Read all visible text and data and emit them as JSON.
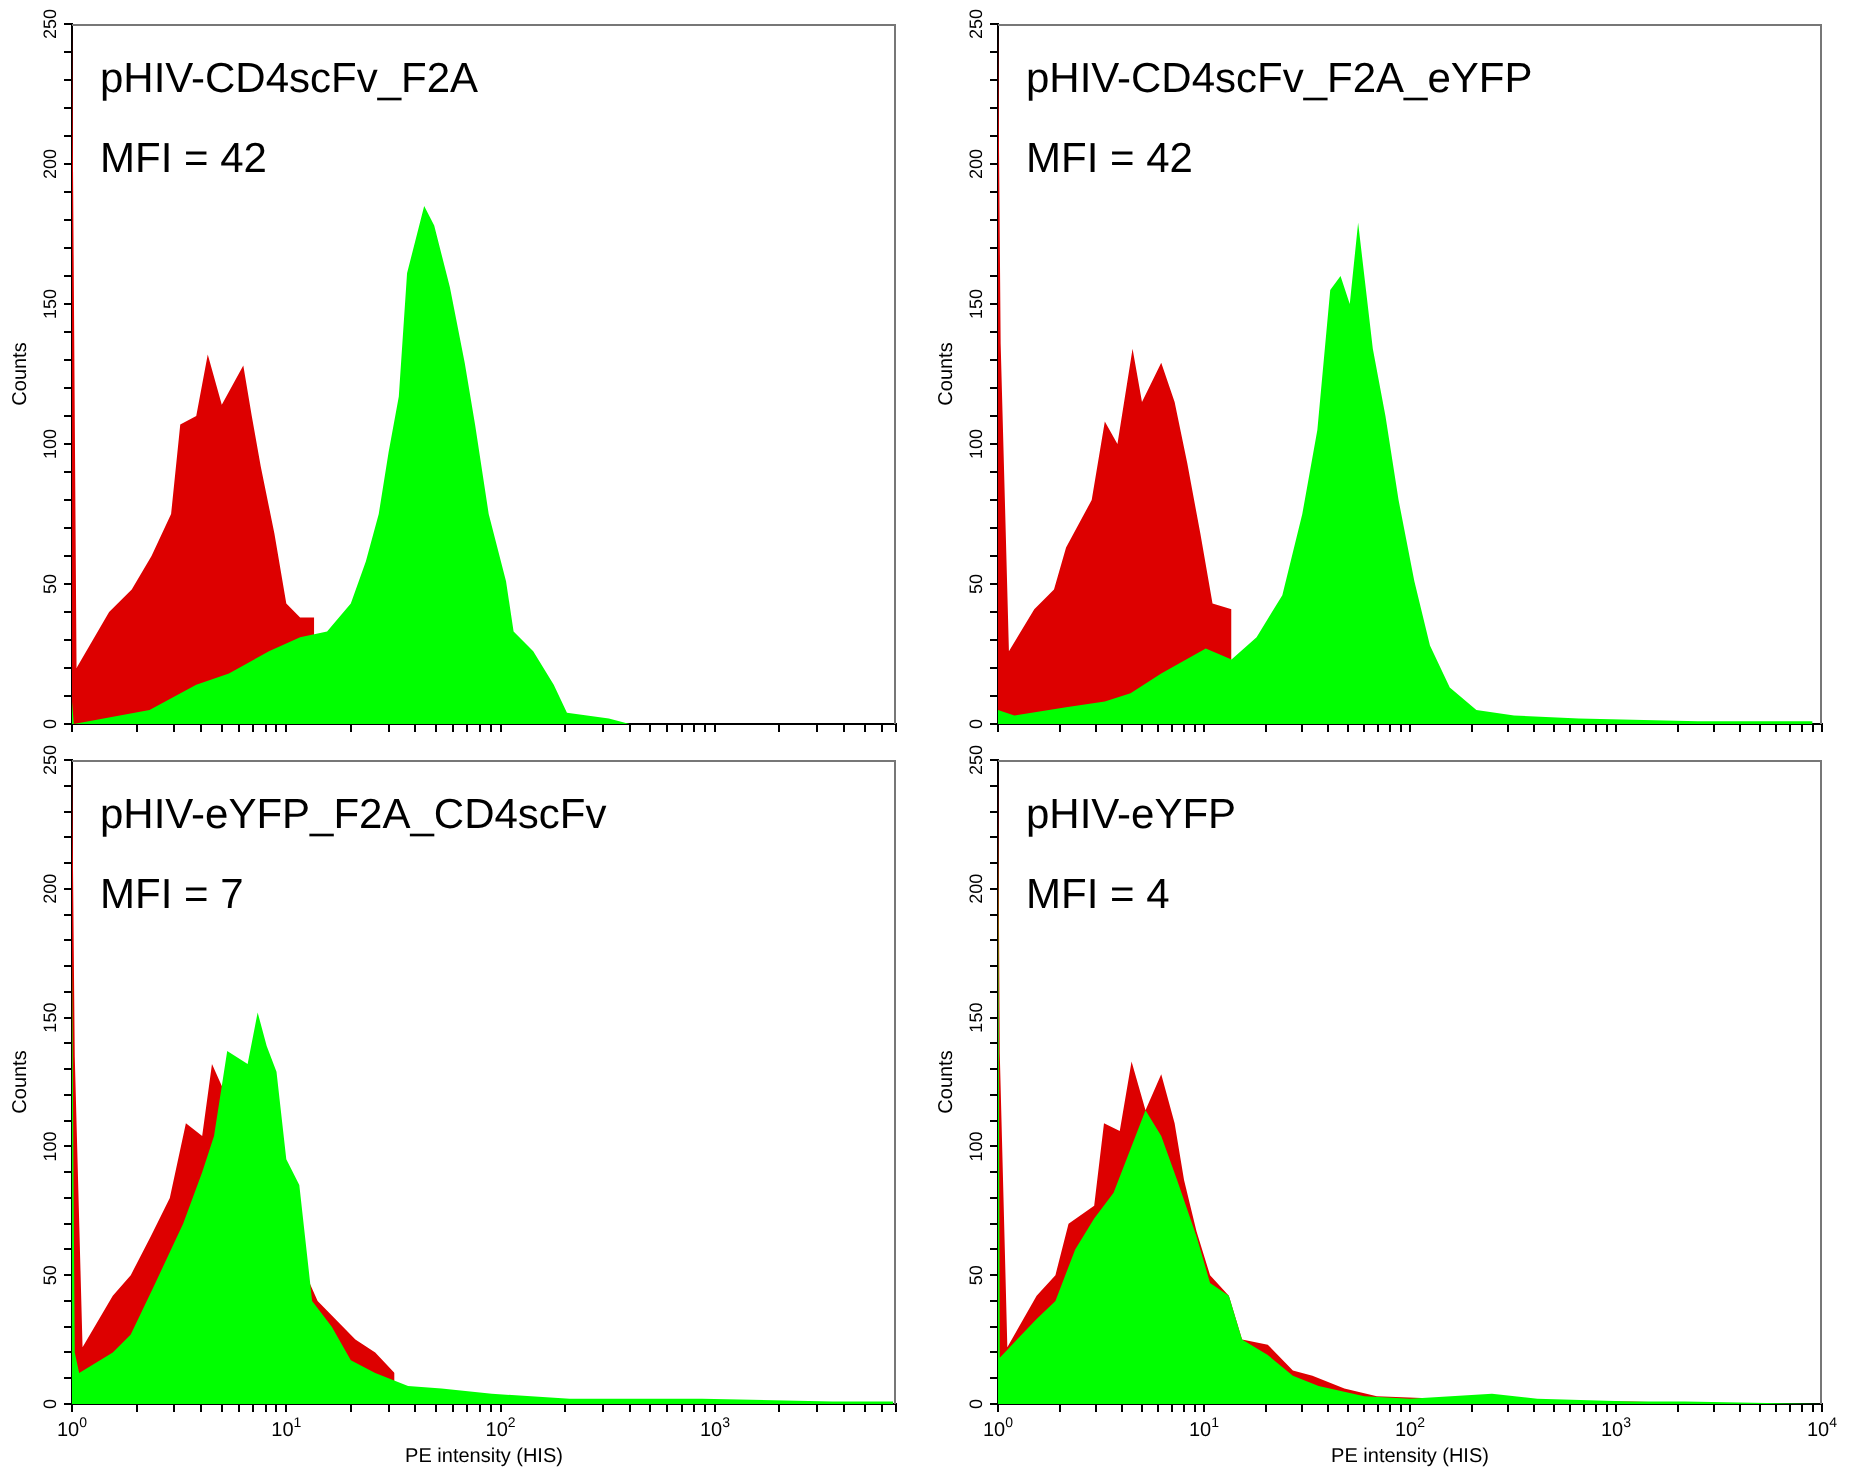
{
  "chart_data": [
    {
      "type": "area",
      "annotations": [
        "pHIV-CD4scFv_F2A",
        "MFI = 42"
      ],
      "ylabel": "Counts",
      "log": "x",
      "legend": false,
      "grid": false,
      "tick_labels": "y",
      "xlim": [
        1,
        7000
      ],
      "ylim": [
        0,
        250
      ],
      "xticks": [
        {
          "value": 1,
          "label": null
        },
        {
          "value": 2,
          "label": null
        },
        {
          "value": 3,
          "label": null
        },
        {
          "value": 4,
          "label": null
        },
        {
          "value": 5,
          "label": null
        },
        {
          "value": 6,
          "label": null
        },
        {
          "value": 7,
          "label": null
        },
        {
          "value": 8,
          "label": null
        },
        {
          "value": 9,
          "label": null
        },
        {
          "value": 10,
          "label": null
        },
        {
          "value": 20,
          "label": null
        },
        {
          "value": 30,
          "label": null
        },
        {
          "value": 40,
          "label": null
        },
        {
          "value": 50,
          "label": null
        },
        {
          "value": 60,
          "label": null
        },
        {
          "value": 70,
          "label": null
        },
        {
          "value": 80,
          "label": null
        },
        {
          "value": 90,
          "label": null
        },
        {
          "value": 100,
          "label": null
        },
        {
          "value": 200,
          "label": null
        },
        {
          "value": 300,
          "label": null
        },
        {
          "value": 400,
          "label": null
        },
        {
          "value": 500,
          "label": null
        },
        {
          "value": 600,
          "label": null
        },
        {
          "value": 700,
          "label": null
        },
        {
          "value": 800,
          "label": null
        },
        {
          "value": 900,
          "label": null
        },
        {
          "value": 1000,
          "label": null
        },
        {
          "value": 2000,
          "label": null
        },
        {
          "value": 3000,
          "label": null
        },
        {
          "value": 4000,
          "label": null
        },
        {
          "value": 5000,
          "label": null
        },
        {
          "value": 6000,
          "label": null
        },
        {
          "value": 7000,
          "label": null
        }
      ],
      "yticks": [
        0,
        {
          "value": 10,
          "label": null
        },
        {
          "value": 20,
          "label": null
        },
        {
          "value": 30,
          "label": null
        },
        {
          "value": 40,
          "label": null
        },
        50,
        {
          "value": 60,
          "label": null
        },
        {
          "value": 70,
          "label": null
        },
        {
          "value": 80,
          "label": null
        },
        {
          "value": 90,
          "label": null
        },
        100,
        {
          "value": 110,
          "label": null
        },
        {
          "value": 120,
          "label": null
        },
        {
          "value": 130,
          "label": null
        },
        {
          "value": 140,
          "label": null
        },
        150,
        {
          "value": 160,
          "label": null
        },
        {
          "value": 170,
          "label": null
        },
        {
          "value": 180,
          "label": null
        },
        {
          "value": 190,
          "label": null
        },
        200,
        {
          "value": 210,
          "label": null
        },
        {
          "value": 220,
          "label": null
        },
        {
          "value": 230,
          "label": null
        },
        {
          "value": 240,
          "label": null
        },
        250
      ],
      "series": [
        {
          "color": "#dd0000",
          "x": [
            1,
            1.05,
            1.49,
            1.9,
            2.35,
            2.9,
            3.2,
            3.8,
            4.3,
            5.0,
            6.3,
            6.9,
            7.6,
            8.8,
            10,
            11.6,
            13.5
          ],
          "values": [
            250,
            20,
            40,
            48,
            60,
            75,
            107,
            110,
            132,
            114,
            128,
            110,
            92,
            68,
            43,
            38,
            38
          ]
        },
        {
          "color": "#00ff00",
          "x": [
            1,
            1.02,
            2.3,
            3.8,
            5.4,
            8.3,
            11.6,
            15.5,
            20,
            23.5,
            27,
            30,
            33.5,
            36.6,
            44,
            49,
            58,
            68,
            76,
            88,
            106,
            115,
            142,
            177,
            204,
            320,
            400
          ],
          "values": [
            8,
            0,
            5,
            14,
            18,
            26,
            31,
            33,
            43,
            58,
            75,
            97,
            117,
            161,
            185,
            178,
            156,
            129,
            107,
            75,
            51,
            33,
            26,
            14,
            4,
            2,
            0
          ]
        }
      ]
    },
    {
      "type": "area",
      "annotations": [
        "pHIV-CD4scFv_F2A_eYFP",
        "MFI = 42"
      ],
      "ylabel": "Counts",
      "log": "x",
      "legend": false,
      "grid": false,
      "tick_labels": "y",
      "xlim": [
        1,
        10000
      ],
      "ylim": [
        0,
        250
      ],
      "xticks": [
        {
          "value": 1,
          "label": null
        },
        {
          "value": 2,
          "label": null
        },
        {
          "value": 3,
          "label": null
        },
        {
          "value": 4,
          "label": null
        },
        {
          "value": 5,
          "label": null
        },
        {
          "value": 6,
          "label": null
        },
        {
          "value": 7,
          "label": null
        },
        {
          "value": 8,
          "label": null
        },
        {
          "value": 9,
          "label": null
        },
        {
          "value": 10,
          "label": null
        },
        {
          "value": 20,
          "label": null
        },
        {
          "value": 30,
          "label": null
        },
        {
          "value": 40,
          "label": null
        },
        {
          "value": 50,
          "label": null
        },
        {
          "value": 60,
          "label": null
        },
        {
          "value": 70,
          "label": null
        },
        {
          "value": 80,
          "label": null
        },
        {
          "value": 90,
          "label": null
        },
        {
          "value": 100,
          "label": null
        },
        {
          "value": 200,
          "label": null
        },
        {
          "value": 300,
          "label": null
        },
        {
          "value": 400,
          "label": null
        },
        {
          "value": 500,
          "label": null
        },
        {
          "value": 600,
          "label": null
        },
        {
          "value": 700,
          "label": null
        },
        {
          "value": 800,
          "label": null
        },
        {
          "value": 900,
          "label": null
        },
        {
          "value": 1000,
          "label": null
        },
        {
          "value": 2000,
          "label": null
        },
        {
          "value": 3000,
          "label": null
        },
        {
          "value": 4000,
          "label": null
        },
        {
          "value": 5000,
          "label": null
        },
        {
          "value": 6000,
          "label": null
        },
        {
          "value": 7000,
          "label": null
        },
        {
          "value": 8000,
          "label": null
        },
        {
          "value": 9000,
          "label": null
        },
        {
          "value": 10000,
          "label": null
        }
      ],
      "yticks": [
        0,
        {
          "value": 10,
          "label": null
        },
        {
          "value": 20,
          "label": null
        },
        {
          "value": 30,
          "label": null
        },
        {
          "value": 40,
          "label": null
        },
        50,
        {
          "value": 60,
          "label": null
        },
        {
          "value": 70,
          "label": null
        },
        {
          "value": 80,
          "label": null
        },
        {
          "value": 90,
          "label": null
        },
        100,
        {
          "value": 110,
          "label": null
        },
        {
          "value": 120,
          "label": null
        },
        {
          "value": 130,
          "label": null
        },
        {
          "value": 140,
          "label": null
        },
        150,
        {
          "value": 160,
          "label": null
        },
        {
          "value": 170,
          "label": null
        },
        {
          "value": 180,
          "label": null
        },
        {
          "value": 190,
          "label": null
        },
        200,
        {
          "value": 210,
          "label": null
        },
        {
          "value": 220,
          "label": null
        },
        {
          "value": 230,
          "label": null
        },
        {
          "value": 240,
          "label": null
        },
        250
      ],
      "series": [
        {
          "color": "#dd0000",
          "x": [
            1,
            1.03,
            1.13,
            1.5,
            1.87,
            2.14,
            2.85,
            3.3,
            3.8,
            4.5,
            5.0,
            6.2,
            7.2,
            8.3,
            9.6,
            11,
            13.6
          ],
          "values": [
            250,
            136,
            26,
            41,
            48,
            63,
            80,
            108,
            100,
            134,
            115,
            129,
            115,
            93,
            68,
            43,
            41
          ]
        },
        {
          "color": "#00ff00",
          "x": [
            1,
            1.2,
            2.14,
            3.3,
            4.4,
            6.2,
            10.2,
            13.6,
            18,
            24,
            30,
            35.5,
            41,
            46,
            51,
            56,
            66,
            76,
            88,
            105,
            125,
            156,
            210,
            320,
            660,
            2500,
            9000
          ],
          "values": [
            5,
            3,
            6,
            8,
            11,
            18,
            27,
            23,
            31,
            46,
            75,
            105,
            155,
            160,
            150,
            179,
            134,
            110,
            80,
            51,
            28,
            13,
            5,
            3,
            2,
            1,
            1
          ]
        }
      ]
    },
    {
      "type": "area",
      "annotations": [
        "pHIV-eYFP_F2A_CD4scFv",
        "MFI = 7"
      ],
      "xlabel": "PE intensity (HIS)",
      "ylabel": "Counts",
      "log": "x",
      "legend": false,
      "grid": false,
      "xlim": [
        1,
        7000
      ],
      "ylim": [
        0,
        250
      ],
      "xticks": [
        {
          "value": 1,
          "label": "10$^{0}$"
        },
        {
          "value": 2,
          "label": null
        },
        {
          "value": 3,
          "label": null
        },
        {
          "value": 4,
          "label": null
        },
        {
          "value": 5,
          "label": null
        },
        {
          "value": 6,
          "label": null
        },
        {
          "value": 7,
          "label": null
        },
        {
          "value": 8,
          "label": null
        },
        {
          "value": 9,
          "label": null
        },
        {
          "value": 10,
          "label": "10$^{1}$"
        },
        {
          "value": 20,
          "label": null
        },
        {
          "value": 30,
          "label": null
        },
        {
          "value": 40,
          "label": null
        },
        {
          "value": 50,
          "label": null
        },
        {
          "value": 60,
          "label": null
        },
        {
          "value": 70,
          "label": null
        },
        {
          "value": 80,
          "label": null
        },
        {
          "value": 90,
          "label": null
        },
        {
          "value": 100,
          "label": "10$^{2}$"
        },
        {
          "value": 200,
          "label": null
        },
        {
          "value": 300,
          "label": null
        },
        {
          "value": 400,
          "label": null
        },
        {
          "value": 500,
          "label": null
        },
        {
          "value": 600,
          "label": null
        },
        {
          "value": 700,
          "label": null
        },
        {
          "value": 800,
          "label": null
        },
        {
          "value": 900,
          "label": null
        },
        {
          "value": 1000,
          "label": "10$^{3}$"
        },
        {
          "value": 2000,
          "label": null
        },
        {
          "value": 3000,
          "label": null
        },
        {
          "value": 4000,
          "label": null
        },
        {
          "value": 5000,
          "label": null
        },
        {
          "value": 6000,
          "label": null
        },
        {
          "value": 7000,
          "label": null
        }
      ],
      "yticks": [
        0,
        {
          "value": 10,
          "label": null
        },
        {
          "value": 20,
          "label": null
        },
        {
          "value": 30,
          "label": null
        },
        {
          "value": 40,
          "label": null
        },
        50,
        {
          "value": 60,
          "label": null
        },
        {
          "value": 70,
          "label": null
        },
        {
          "value": 80,
          "label": null
        },
        {
          "value": 90,
          "label": null
        },
        100,
        {
          "value": 110,
          "label": null
        },
        {
          "value": 120,
          "label": null
        },
        {
          "value": 130,
          "label": null
        },
        {
          "value": 140,
          "label": null
        },
        150,
        {
          "value": 160,
          "label": null
        },
        {
          "value": 170,
          "label": null
        },
        {
          "value": 180,
          "label": null
        },
        {
          "value": 190,
          "label": null
        },
        200,
        {
          "value": 210,
          "label": null
        },
        {
          "value": 220,
          "label": null
        },
        {
          "value": 230,
          "label": null
        },
        {
          "value": 240,
          "label": null
        },
        250
      ],
      "series": [
        {
          "color": "#dd0000",
          "x": [
            1,
            1.03,
            1.12,
            1.55,
            1.88,
            2.33,
            2.86,
            3.4,
            4.05,
            4.5,
            14,
            21,
            26,
            32
          ],
          "values": [
            250,
            135,
            22,
            42,
            50,
            65,
            80,
            109,
            104,
            132,
            40,
            25,
            20,
            12
          ]
        },
        {
          "color": "#00ff00",
          "x": [
            1,
            1.03,
            1.08,
            1.55,
            1.88,
            2.45,
            3.3,
            4.05,
            4.6,
            5.3,
            6.6,
            7.35,
            8.1,
            9,
            10,
            11.5,
            13.2,
            16.3,
            20,
            26,
            37,
            53,
            91,
            210,
            870,
            3530,
            6800
          ],
          "values": [
            174,
            20,
            12,
            20,
            27,
            47,
            70,
            90,
            104,
            137,
            132,
            152,
            139,
            129,
            95,
            85,
            40,
            30,
            17,
            12,
            7,
            6,
            4,
            2,
            2,
            1,
            1
          ]
        }
      ]
    },
    {
      "type": "area",
      "annotations": [
        "pHIV-eYFP",
        "MFI = 4"
      ],
      "xlabel": "PE intensity (HIS)",
      "ylabel": "Counts",
      "log": "x",
      "legend": false,
      "grid": false,
      "xlim": [
        1,
        10000
      ],
      "ylim": [
        0,
        250
      ],
      "xticks": [
        {
          "value": 1,
          "label": "10$^{0}$"
        },
        {
          "value": 2,
          "label": null
        },
        {
          "value": 3,
          "label": null
        },
        {
          "value": 4,
          "label": null
        },
        {
          "value": 5,
          "label": null
        },
        {
          "value": 6,
          "label": null
        },
        {
          "value": 7,
          "label": null
        },
        {
          "value": 8,
          "label": null
        },
        {
          "value": 9,
          "label": null
        },
        {
          "value": 10,
          "label": "10$^{1}$"
        },
        {
          "value": 20,
          "label": null
        },
        {
          "value": 30,
          "label": null
        },
        {
          "value": 40,
          "label": null
        },
        {
          "value": 50,
          "label": null
        },
        {
          "value": 60,
          "label": null
        },
        {
          "value": 70,
          "label": null
        },
        {
          "value": 80,
          "label": null
        },
        {
          "value": 90,
          "label": null
        },
        {
          "value": 100,
          "label": "10$^{2}$"
        },
        {
          "value": 200,
          "label": null
        },
        {
          "value": 300,
          "label": null
        },
        {
          "value": 400,
          "label": null
        },
        {
          "value": 500,
          "label": null
        },
        {
          "value": 600,
          "label": null
        },
        {
          "value": 700,
          "label": null
        },
        {
          "value": 800,
          "label": null
        },
        {
          "value": 900,
          "label": null
        },
        {
          "value": 1000,
          "label": "10$^{3}$"
        },
        {
          "value": 2000,
          "label": null
        },
        {
          "value": 3000,
          "label": null
        },
        {
          "value": 4000,
          "label": null
        },
        {
          "value": 5000,
          "label": null
        },
        {
          "value": 6000,
          "label": null
        },
        {
          "value": 7000,
          "label": null
        },
        {
          "value": 8000,
          "label": null
        },
        {
          "value": 9000,
          "label": null
        },
        {
          "value": 10000,
          "label": "10$^{4}$"
        }
      ],
      "yticks": [
        0,
        {
          "value": 10,
          "label": null
        },
        {
          "value": 20,
          "label": null
        },
        {
          "value": 30,
          "label": null
        },
        {
          "value": 40,
          "label": null
        },
        50,
        {
          "value": 60,
          "label": null
        },
        {
          "value": 70,
          "label": null
        },
        {
          "value": 80,
          "label": null
        },
        {
          "value": 90,
          "label": null
        },
        100,
        {
          "value": 110,
          "label": null
        },
        {
          "value": 120,
          "label": null
        },
        {
          "value": 130,
          "label": null
        },
        {
          "value": 140,
          "label": null
        },
        150,
        {
          "value": 160,
          "label": null
        },
        {
          "value": 170,
          "label": null
        },
        {
          "value": 180,
          "label": null
        },
        {
          "value": 190,
          "label": null
        },
        200,
        {
          "value": 210,
          "label": null
        },
        {
          "value": 220,
          "label": null
        },
        {
          "value": 230,
          "label": null
        },
        {
          "value": 240,
          "label": null
        },
        250
      ],
      "series": [
        {
          "color": "#dd0000",
          "x": [
            1,
            1.02,
            1.11,
            1.54,
            1.9,
            2.2,
            2.93,
            3.27,
            3.9,
            4.45,
            5.2,
            6.2,
            7.2,
            8.0,
            9.2,
            10.7,
            13.2,
            15.3,
            20.4,
            27,
            33.6,
            48,
            69,
            141,
            590,
            1200,
            3000
          ],
          "values": [
            250,
            136,
            22,
            42,
            50,
            70,
            77,
            109,
            106,
            133,
            114,
            128,
            109,
            87,
            67,
            50,
            42,
            25,
            23,
            13,
            11,
            6,
            3,
            2,
            1,
            1,
            0
          ]
        },
        {
          "color": "#00ff00",
          "x": [
            1,
            1.02,
            1.54,
            1.9,
            2.37,
            2.93,
            3.64,
            4.5,
            5.2,
            6.2,
            7.4,
            9.2,
            10.7,
            13.2,
            15.3,
            20.4,
            27,
            36,
            60,
            100,
            250,
            415,
            1200,
            2150,
            10000
          ],
          "values": [
            227,
            18,
            33,
            40,
            60,
            72,
            82,
            101,
            114,
            104,
            87,
            65,
            47,
            42,
            25,
            19,
            11,
            7,
            3,
            2,
            4,
            2,
            1,
            1,
            0
          ]
        }
      ]
    }
  ]
}
